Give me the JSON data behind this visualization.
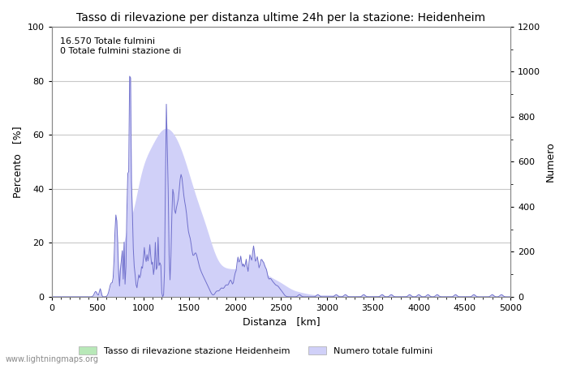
{
  "title": "Tasso di rilevazione per distanza ultime 24h per la stazione: Heidenheim",
  "xlabel": "Distanza   [km]",
  "ylabel_left": "Percento   [%]",
  "ylabel_right": "Numero",
  "annotation_line1": "16.570 Totale fulmini",
  "annotation_line2": "0 Totale fulmini stazione di",
  "xlim": [
    0,
    5000
  ],
  "ylim_left": [
    0,
    100
  ],
  "ylim_right": [
    0,
    1200
  ],
  "xticks": [
    0,
    500,
    1000,
    1500,
    2000,
    2500,
    3000,
    3500,
    4000,
    4500,
    5000
  ],
  "yticks_left": [
    0,
    20,
    40,
    60,
    80,
    100
  ],
  "yticks_right": [
    0,
    200,
    400,
    600,
    800,
    1000,
    1200
  ],
  "legend_label_green": "Tasso di rilevazione stazione Heidenheim",
  "legend_label_blue": "Numero totale fulmini",
  "watermark": "www.lightningmaps.org",
  "bg_color": "#ffffff",
  "grid_color": "#c8c8c8",
  "fill_blue_color": "#d0d0f8",
  "fill_blue_edge": "#7070cc",
  "fill_green_color": "#b8e8b8",
  "fill_green_edge": "#80b880",
  "title_fontsize": 10,
  "axis_fontsize": 9,
  "tick_fontsize": 8,
  "legend_fontsize": 8,
  "annotation_fontsize": 8
}
